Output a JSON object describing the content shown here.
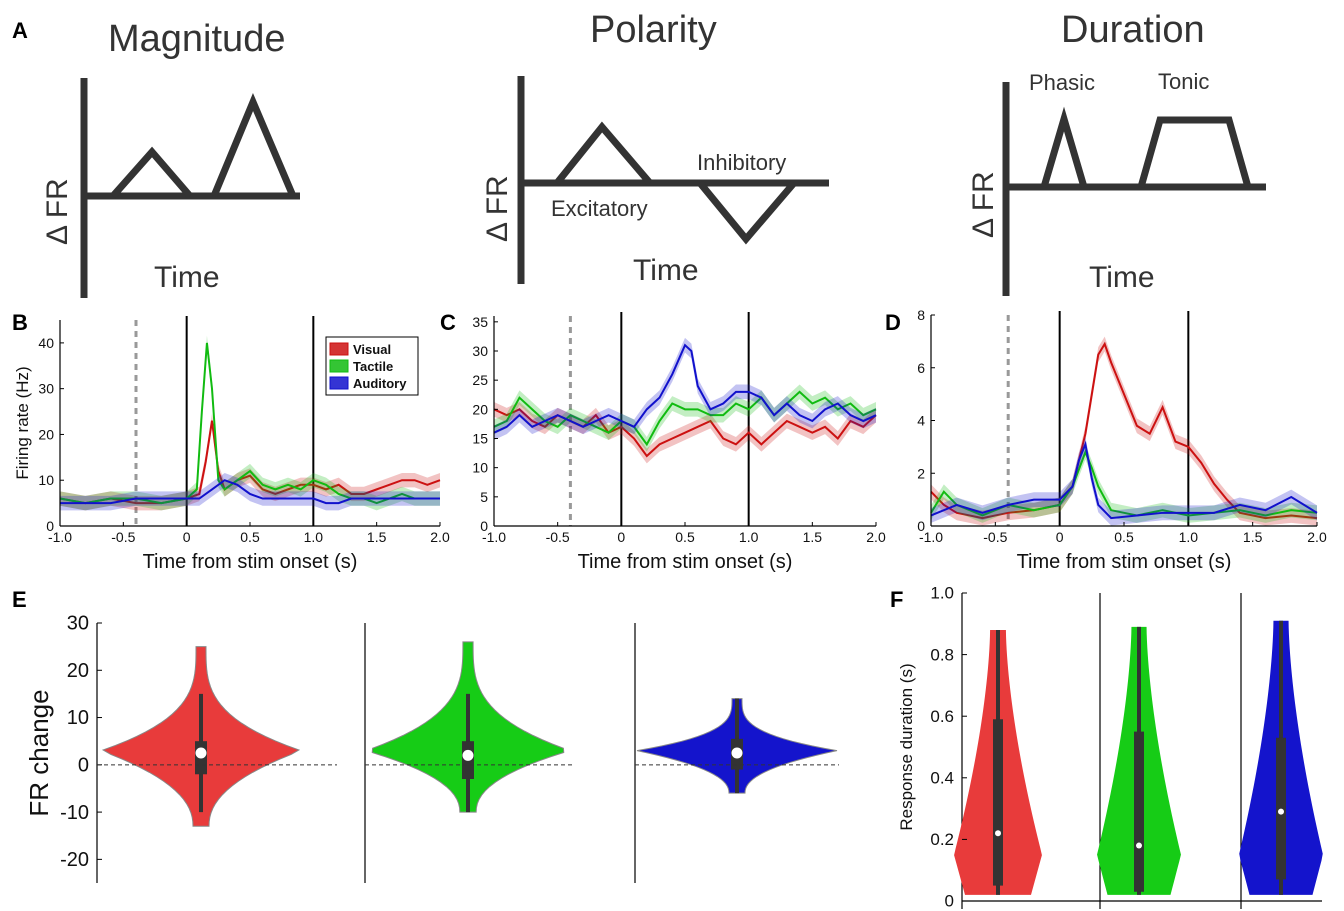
{
  "colors": {
    "visual": "#cc1111",
    "tactile": "#11bb11",
    "auditory": "#1111cc",
    "violin_red": "#e83b3b",
    "violin_green": "#16cc16",
    "violin_blue": "#1414cc",
    "schematic": "#333333"
  },
  "panelA": {
    "letter": "A",
    "magnitude": {
      "title": "Magnitude",
      "ylabel": "Δ FR",
      "xlabel": "Time"
    },
    "polarity": {
      "title": "Polarity",
      "ylabel": "Δ FR",
      "xlabel": "Time",
      "excitatory": "Excitatory",
      "inhibitory": "Inhibitory"
    },
    "duration": {
      "title": "Duration",
      "ylabel": "Δ FR",
      "xlabel": "Time",
      "phasic": "Phasic",
      "tonic": "Tonic"
    }
  },
  "chart_data": [
    {
      "panel": "B",
      "type": "line",
      "ylabel": "Firing rate (Hz)",
      "xlabel": "Time from stim onset (s)",
      "xlim": [
        -1.0,
        2.0
      ],
      "ylim": [
        0,
        45
      ],
      "xticks": [
        "-1.0",
        "-0.5",
        "0",
        "0.5",
        "1.0",
        "1.5",
        "2.0"
      ],
      "yticks": [
        "0",
        "10",
        "20",
        "30",
        "40"
      ],
      "vlines_solid": [
        0,
        1
      ],
      "vline_dashed": -0.4,
      "legend": {
        "placement": "top-right",
        "entries": [
          "Visual",
          "Tactile",
          "Auditory"
        ]
      },
      "series": [
        {
          "name": "Visual",
          "x": [
            -1.0,
            -0.8,
            -0.6,
            -0.4,
            -0.2,
            0.0,
            0.1,
            0.15,
            0.2,
            0.25,
            0.3,
            0.4,
            0.5,
            0.6,
            0.7,
            0.8,
            0.9,
            1.0,
            1.1,
            1.2,
            1.3,
            1.4,
            1.5,
            1.6,
            1.7,
            1.8,
            1.9,
            2.0
          ],
          "y": [
            6,
            5,
            6,
            5,
            5,
            6,
            7,
            14,
            23,
            12,
            8,
            10,
            11,
            8,
            7,
            8,
            9,
            9,
            8,
            9,
            7,
            7,
            8,
            9,
            10,
            10,
            9,
            10
          ]
        },
        {
          "name": "Tactile",
          "x": [
            -1.0,
            -0.8,
            -0.6,
            -0.4,
            -0.2,
            0.0,
            0.08,
            0.12,
            0.16,
            0.2,
            0.25,
            0.3,
            0.4,
            0.5,
            0.6,
            0.7,
            0.8,
            0.9,
            1.0,
            1.1,
            1.2,
            1.3,
            1.4,
            1.5,
            1.6,
            1.7,
            1.8,
            1.9,
            2.0
          ],
          "y": [
            6,
            5,
            6,
            6,
            5,
            6,
            8,
            25,
            40,
            30,
            10,
            8,
            10,
            12,
            9,
            8,
            9,
            8,
            10,
            9,
            7,
            6,
            6,
            5,
            6,
            7,
            6,
            6,
            6
          ]
        },
        {
          "name": "Auditory",
          "x": [
            -1.0,
            -0.8,
            -0.6,
            -0.4,
            -0.2,
            0.0,
            0.1,
            0.2,
            0.3,
            0.4,
            0.5,
            0.6,
            0.7,
            0.8,
            0.9,
            1.0,
            1.1,
            1.2,
            1.3,
            1.4,
            1.5,
            1.6,
            1.7,
            1.8,
            1.9,
            2.0
          ],
          "y": [
            5,
            5,
            5,
            6,
            6,
            6,
            6,
            8,
            10,
            9,
            7,
            6,
            6,
            6,
            6,
            6,
            5,
            5,
            6,
            6,
            6,
            6,
            6,
            6,
            6,
            6
          ]
        }
      ]
    },
    {
      "panel": "C",
      "type": "line",
      "xlabel": "Time from stim onset (s)",
      "xlim": [
        -1.0,
        2.0
      ],
      "ylim": [
        0,
        36
      ],
      "xticks": [
        "-1.0",
        "-0.5",
        "0",
        "0.5",
        "1.0",
        "1.5",
        "2.0"
      ],
      "yticks": [
        "0",
        "5",
        "10",
        "15",
        "20",
        "25",
        "30",
        "35"
      ],
      "vlines_solid": [
        0,
        1
      ],
      "vline_dashed": -0.4,
      "series": [
        {
          "name": "Visual",
          "x": [
            -1.0,
            -0.9,
            -0.8,
            -0.7,
            -0.6,
            -0.5,
            -0.4,
            -0.3,
            -0.2,
            -0.1,
            0.0,
            0.1,
            0.2,
            0.3,
            0.4,
            0.5,
            0.6,
            0.7,
            0.8,
            0.9,
            1.0,
            1.1,
            1.2,
            1.3,
            1.4,
            1.5,
            1.6,
            1.7,
            1.8,
            1.9,
            2.0
          ],
          "y": [
            20,
            19,
            20,
            18,
            17,
            19,
            18,
            17,
            19,
            16,
            17,
            15,
            12,
            14,
            15,
            16,
            17,
            18,
            15,
            14,
            16,
            14,
            16,
            18,
            17,
            16,
            17,
            15,
            18,
            17,
            19
          ]
        },
        {
          "name": "Tactile",
          "x": [
            -1.0,
            -0.9,
            -0.8,
            -0.7,
            -0.6,
            -0.5,
            -0.4,
            -0.3,
            -0.2,
            -0.1,
            0.0,
            0.1,
            0.2,
            0.3,
            0.4,
            0.5,
            0.6,
            0.7,
            0.8,
            0.9,
            1.0,
            1.1,
            1.2,
            1.3,
            1.4,
            1.5,
            1.6,
            1.7,
            1.8,
            1.9,
            2.0
          ],
          "y": [
            17,
            18,
            22,
            20,
            18,
            17,
            19,
            18,
            17,
            16,
            18,
            17,
            14,
            18,
            21,
            20,
            20,
            19,
            19,
            21,
            20,
            22,
            19,
            21,
            23,
            21,
            22,
            20,
            21,
            19,
            20
          ]
        },
        {
          "name": "Auditory",
          "x": [
            -1.0,
            -0.9,
            -0.8,
            -0.7,
            -0.6,
            -0.5,
            -0.4,
            -0.3,
            -0.2,
            -0.1,
            0.0,
            0.1,
            0.2,
            0.3,
            0.4,
            0.5,
            0.55,
            0.6,
            0.7,
            0.8,
            0.9,
            1.0,
            1.1,
            1.2,
            1.3,
            1.4,
            1.5,
            1.6,
            1.7,
            1.8,
            1.9,
            2.0
          ],
          "y": [
            16,
            17,
            19,
            17,
            18,
            19,
            18,
            17,
            18,
            19,
            18,
            17,
            20,
            22,
            26,
            31,
            30,
            24,
            20,
            21,
            23,
            23,
            22,
            19,
            21,
            19,
            18,
            20,
            21,
            19,
            18,
            19
          ]
        }
      ]
    },
    {
      "panel": "D",
      "type": "line",
      "xlabel": "Time from stim onset (s)",
      "xlim": [
        -1.0,
        2.0
      ],
      "ylim": [
        0,
        8
      ],
      "xticks": [
        "-1.0",
        "-0.5",
        "0",
        "0.5",
        "1.0",
        "1.5",
        "2.0"
      ],
      "yticks": [
        "0",
        "2",
        "4",
        "6",
        "8"
      ],
      "vlines_solid": [
        0,
        1
      ],
      "vline_dashed": -0.4,
      "series": [
        {
          "name": "Visual",
          "x": [
            -1.0,
            -0.9,
            -0.8,
            -0.6,
            -0.4,
            -0.2,
            0.0,
            0.1,
            0.2,
            0.3,
            0.35,
            0.4,
            0.5,
            0.6,
            0.7,
            0.8,
            0.9,
            1.0,
            1.1,
            1.2,
            1.3,
            1.4,
            1.6,
            1.8,
            2.0
          ],
          "y": [
            1.3,
            0.8,
            0.5,
            0.3,
            0.5,
            0.6,
            0.8,
            1.5,
            3.5,
            6.5,
            6.9,
            6.2,
            5.0,
            3.8,
            3.5,
            4.5,
            3.2,
            3.0,
            2.4,
            1.6,
            1.0,
            0.5,
            0.3,
            0.4,
            0.3
          ]
        },
        {
          "name": "Tactile",
          "x": [
            -1.0,
            -0.9,
            -0.8,
            -0.6,
            -0.4,
            -0.2,
            0.0,
            0.1,
            0.2,
            0.25,
            0.3,
            0.4,
            0.6,
            0.8,
            1.0,
            1.2,
            1.4,
            1.6,
            1.8,
            2.0
          ],
          "y": [
            0.5,
            1.3,
            0.8,
            0.4,
            0.8,
            0.6,
            0.8,
            1.5,
            2.8,
            2.2,
            1.5,
            0.6,
            0.4,
            0.6,
            0.4,
            0.5,
            0.6,
            0.4,
            0.6,
            0.5
          ]
        },
        {
          "name": "Auditory",
          "x": [
            -1.0,
            -0.8,
            -0.6,
            -0.4,
            -0.2,
            0.0,
            0.1,
            0.15,
            0.2,
            0.25,
            0.3,
            0.4,
            0.6,
            0.8,
            1.0,
            1.2,
            1.4,
            1.6,
            1.8,
            2.0
          ],
          "y": [
            0.4,
            0.8,
            0.5,
            0.8,
            1.0,
            1.0,
            1.5,
            2.5,
            3.1,
            1.8,
            0.8,
            0.3,
            0.4,
            0.5,
            0.5,
            0.5,
            0.8,
            0.6,
            1.1,
            0.5
          ]
        }
      ]
    },
    {
      "panel": "E",
      "type": "violin",
      "ylabel": "FR change",
      "ylim": [
        -25,
        30
      ],
      "yticks": [
        "30",
        "20",
        "10",
        "0",
        "-10",
        "-20"
      ],
      "groups": [
        {
          "name": "Visual",
          "min": -13,
          "max": 25,
          "median": 2.5,
          "q1": -2,
          "q3": 5,
          "whisker_low": -10,
          "whisker_high": 15
        },
        {
          "name": "Tactile",
          "min": -10,
          "max": 26,
          "median": 2,
          "q1": -3,
          "q3": 5,
          "whisker_low": -10,
          "whisker_high": 15
        },
        {
          "name": "Auditory",
          "min": -6,
          "max": 14,
          "median": 2.5,
          "q1": -1,
          "q3": 5.5,
          "whisker_low": -6,
          "whisker_high": 14
        }
      ]
    },
    {
      "panel": "F",
      "type": "violin",
      "ylabel": "Response duration (s)",
      "ylim": [
        0,
        1.0
      ],
      "yticks": [
        "1.0",
        "0.8",
        "0.6",
        "0.4",
        "0.2",
        "0"
      ],
      "groups": [
        {
          "name": "Visual",
          "min": 0.02,
          "max": 0.88,
          "median": 0.22,
          "q1": 0.05,
          "q3": 0.59
        },
        {
          "name": "Tactile",
          "min": 0.02,
          "max": 0.89,
          "median": 0.18,
          "q1": 0.03,
          "q3": 0.55
        },
        {
          "name": "Auditory",
          "min": 0.02,
          "max": 0.91,
          "median": 0.29,
          "q1": 0.07,
          "q3": 0.53
        }
      ]
    }
  ]
}
